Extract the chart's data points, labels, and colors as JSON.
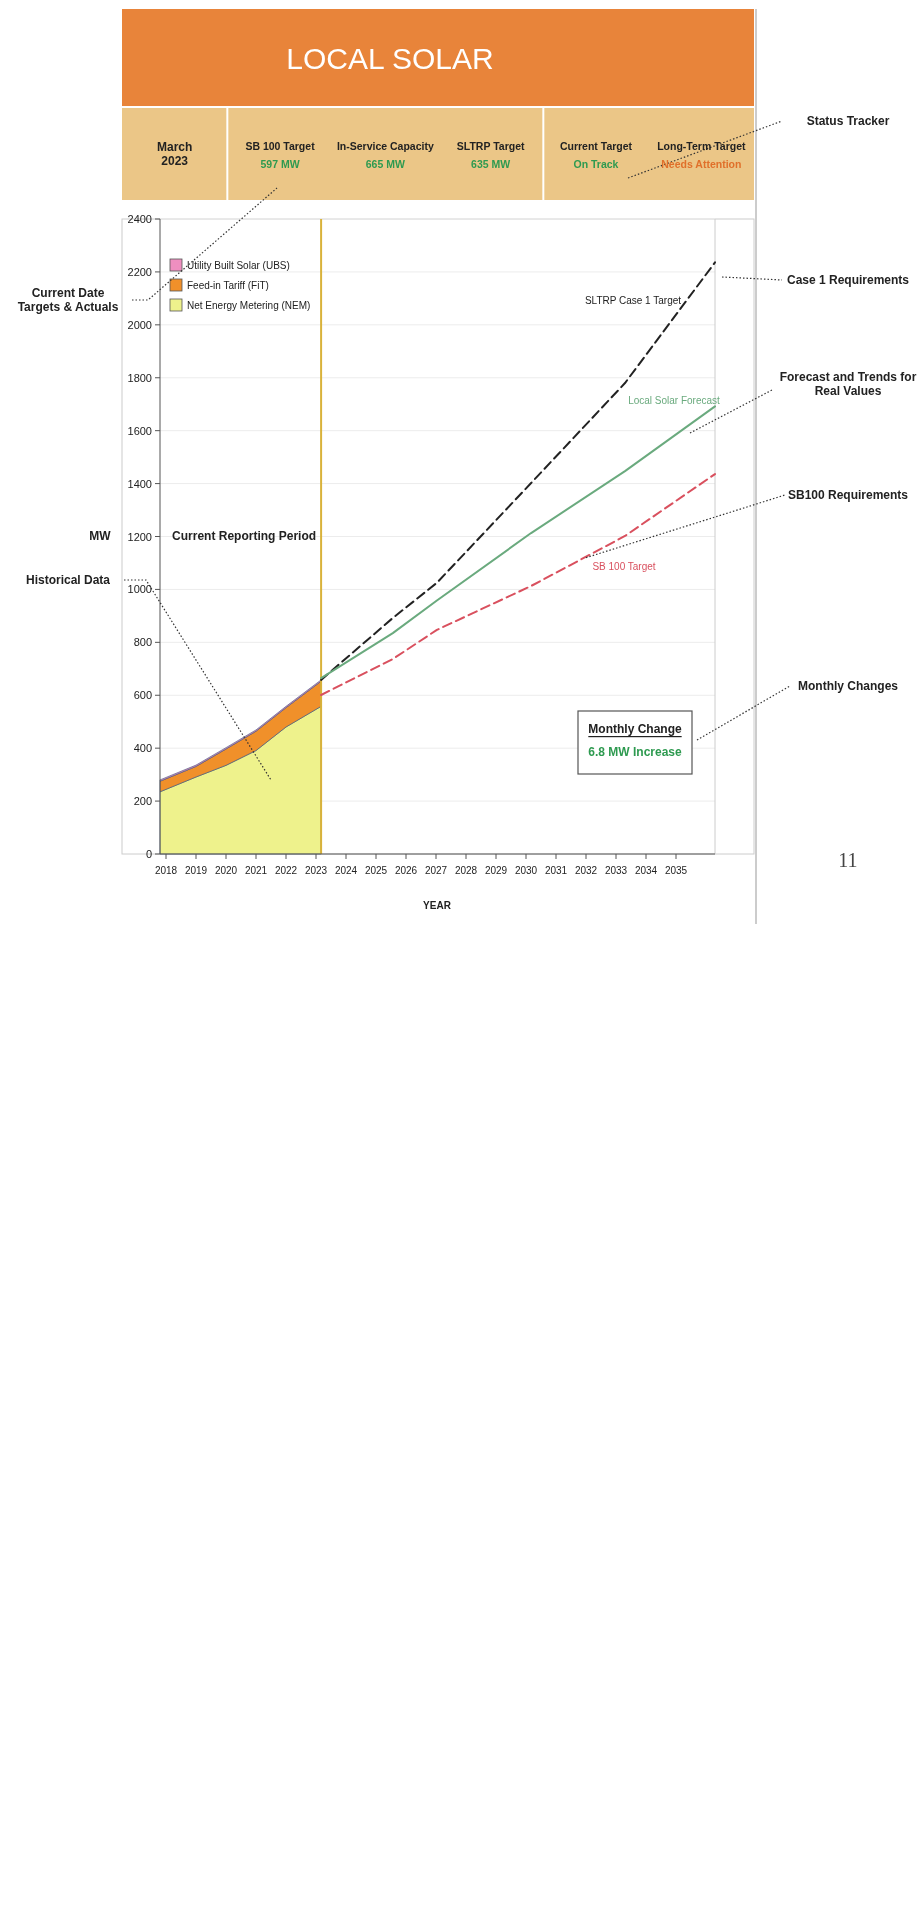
{
  "chart_data": {
    "type": "area",
    "title": "LOCAL SOLAR",
    "xlabel": "YEAR",
    "ylabel": "MW",
    "xlim": [
      2017.8,
      2036.3
    ],
    "xticks": [
      2018,
      2019,
      2020,
      2021,
      2022,
      2023,
      2024,
      2025,
      2026,
      2027,
      2028,
      2029,
      2030,
      2031,
      2032,
      2033,
      2034,
      2035
    ],
    "ylim": [
      0,
      2400
    ],
    "yticks": [
      0,
      200,
      400,
      600,
      800,
      1000,
      1200,
      1400,
      1600,
      1800,
      2000,
      2200,
      2400
    ],
    "grid": "y",
    "legend": "top left",
    "stacked": true,
    "series": [
      {
        "name": "Net Energy Metering (NEM)",
        "type": "area",
        "color": "#eef28c",
        "x": [
          2017.8,
          2019,
          2020,
          2021,
          2022,
          2023.17
        ],
        "values": [
          235,
          291,
          335,
          391,
          480,
          558
        ]
      },
      {
        "name": "Feed-in Tariff (FiT)",
        "type": "area",
        "color": "#f0902a",
        "x": [
          2017.8,
          2019,
          2020,
          2021,
          2022,
          2023.17
        ],
        "values": [
          40,
          40,
          62,
          73,
          73,
          95
        ]
      },
      {
        "name": "Utility Built Solar (UBS)",
        "type": "area",
        "color": "#ef8fc0",
        "x": [
          2017.8,
          2019,
          2020,
          2021,
          2022,
          2023.17
        ],
        "values": [
          5,
          5,
          5,
          5,
          5,
          5
        ]
      },
      {
        "name": "SLTRP Case 1 Target",
        "type": "line",
        "color": "#222222",
        "line_style": "dashed",
        "x": [
          2023.17,
          2025.56,
          2027.03,
          2030.17,
          2033.3,
          2036.3
        ],
        "values": [
          658,
          892,
          1025,
          1402,
          1780,
          2236
        ]
      },
      {
        "name": "Local Solar Forecast",
        "type": "line",
        "color": "#6aaa7e",
        "line_style": "solid",
        "x": [
          2023.17,
          2025.56,
          2027.03,
          2030.17,
          2033.3,
          2036.3
        ],
        "values": [
          665,
          835,
          958,
          1213,
          1447,
          1692
        ]
      },
      {
        "name": "SB 100 Target",
        "type": "line",
        "color": "#d9505e",
        "line_style": "dashed",
        "x": [
          2023.17,
          2025.56,
          2027.03,
          2030.17,
          2033.3,
          2036.3
        ],
        "values": [
          601,
          737,
          847,
          1013,
          1202,
          1436
        ]
      }
    ],
    "ref_lines": [
      {
        "axis": "x",
        "value": 2023.17,
        "label": "Current Reporting Period",
        "color": "#d9b23a"
      }
    ],
    "annotations": [
      "Current Date\nTargets & Actuals",
      "Historical Data",
      "March\n2023",
      "SB 100 Target",
      "597 MW",
      "In-Service Capacity",
      "665 MW",
      "SLTRP Target",
      "635 MW",
      "Current Target",
      "On Track",
      "Long-Term Target",
      "Needs Attention",
      "Monthly Change",
      "6.8 MW Increase",
      "Status Tracker",
      "Case 1 Requirements",
      "Forecast and Trends for\nReal Values",
      {
        "text": "SB100 Requirements",
        "x": 2032,
        "y": 1120
      },
      "Monthly Changes",
      "11"
    ]
  }
}
